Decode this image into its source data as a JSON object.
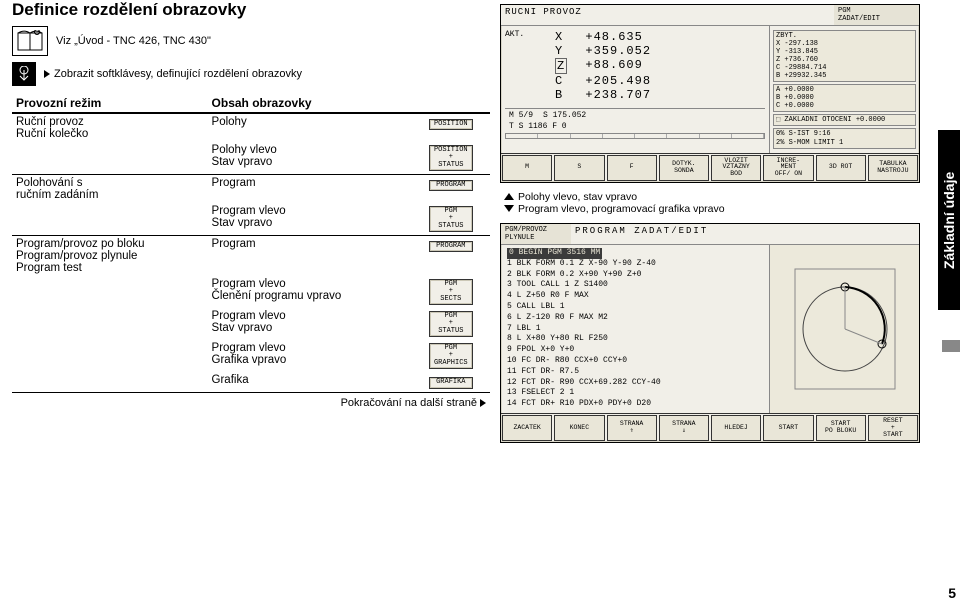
{
  "title": "Definice rozdělení obrazovky",
  "ref_text": "Viz „Úvod - TNC 426, TNC 430\"",
  "tip_text": "Zobrazit softklávesy, definující rozdělení obrazovky",
  "table": {
    "headers": [
      "Provozní režim",
      "Obsah obrazovky",
      ""
    ],
    "groups": [
      {
        "mode": "Ruční provoz\nRuční kolečko",
        "rows": [
          {
            "content": "Polohy",
            "icon": "POSITION"
          },
          {
            "content": "Polohy vlevo\nStav vpravo",
            "icon": "POSITION\n+\nSTATUS"
          }
        ]
      },
      {
        "mode": "Polohování s\nručním zadáním",
        "rows": [
          {
            "content": "Program",
            "icon": "PROGRAM"
          },
          {
            "content": "Program vlevo\nStav vpravo",
            "icon": "PGM\n+\nSTATUS"
          }
        ]
      },
      {
        "mode": "Program/provoz po bloku\nProgram/provoz plynule\nProgram test",
        "rows": [
          {
            "content": "Program",
            "icon": "PROGRAM"
          },
          {
            "content": "Program vlevo\nČlenění programu vpravo",
            "icon": "PGM\n+\nSECTS"
          },
          {
            "content": "Program vlevo\nStav vpravo",
            "icon": "PGM\n+\nSTATUS"
          },
          {
            "content": "Program vlevo\nGrafika vpravo",
            "icon": "PGM\n+\nGRAPHICS"
          },
          {
            "content": "Grafika",
            "icon": "GRAFIKA"
          }
        ]
      }
    ]
  },
  "footer": "Pokračování na další straně",
  "side_tab": "Základní údaje",
  "page_number": "5",
  "legend": {
    "up": "Polohy vlevo, stav vpravo",
    "down": "Program vlevo, programovací grafika vpravo"
  },
  "screenshot1": {
    "title": "RUCNI PROVOZ",
    "side_title": "PGM\nZADAT/EDIT",
    "akt_label": "AKT.",
    "coords": [
      {
        "axis": "X",
        "value": "+48.635"
      },
      {
        "axis": "Y",
        "value": "+359.052"
      },
      {
        "axis": "Z",
        "value": "+88.609",
        "boxed": true
      },
      {
        "axis": "C",
        "value": "+205.498"
      },
      {
        "axis": "B",
        "value": "+238.707"
      }
    ],
    "status_left": "M 5/9",
    "status_s": "S   175.052",
    "status_tf": "T        S 1186    F 0",
    "side_panels": {
      "zbyt": [
        "ZBYT.",
        "X   -297.138",
        "Y   -313.845",
        "Z   +736.760",
        "C -29884.714",
        "B +29932.345"
      ],
      "abc": [
        "A   +0.0000",
        "B   +0.0000",
        "C   +0.0000"
      ],
      "zakl": "ZAKLADNI OTOCENI   +0.0000",
      "bottom": [
        "0%  S-IST  9:16",
        "2%  S-MOM  LIMIT 1"
      ]
    },
    "fkeys": [
      "M",
      "S",
      "F",
      "DOTYK.\nSONDA",
      "VLOZIT\nVZTAZNY\nBOD",
      "INCRE-\nMENT\nOFF/ ON",
      "3D ROT",
      "TABULKA\nNASTROJU"
    ]
  },
  "screenshot2": {
    "title_left": "PGM/PROVOZ\nPLYNULE",
    "title": "PROGRAM ZADAT/EDIT",
    "lines": [
      "0  BEGIN PGM 3516 MM",
      "1  BLK FORM 0.1 Z X-90 Y-90 Z-40",
      "2  BLK FORM 0.2 X+90 Y+90 Z+0",
      "3  TOOL CALL 1 Z S1400",
      "4  L Z+50 R0 F MAX",
      "5  CALL LBL 1",
      "6  L Z-120 R0 F MAX M2",
      "7  LBL 1",
      "8  L X+80 Y+80 RL F250",
      "9  FPOL X+0 Y+0",
      "10 FC DR- R80 CCX+0 CCY+0",
      "11 FCT DR- R7.5",
      "12 FCT DR- R90 CCX+69.282 CCY-40",
      "13 FSELECT 2 1",
      "14 FCT DR+ R10 PDX+0 PDY+0 D20"
    ],
    "fkeys": [
      "ZACATEK",
      "KONEC",
      "STRANA\n⇑",
      "STRANA\n⇓",
      "HLEDEJ",
      "START",
      "START\nPO BLOKU",
      "RESET\n+\nSTART"
    ]
  }
}
